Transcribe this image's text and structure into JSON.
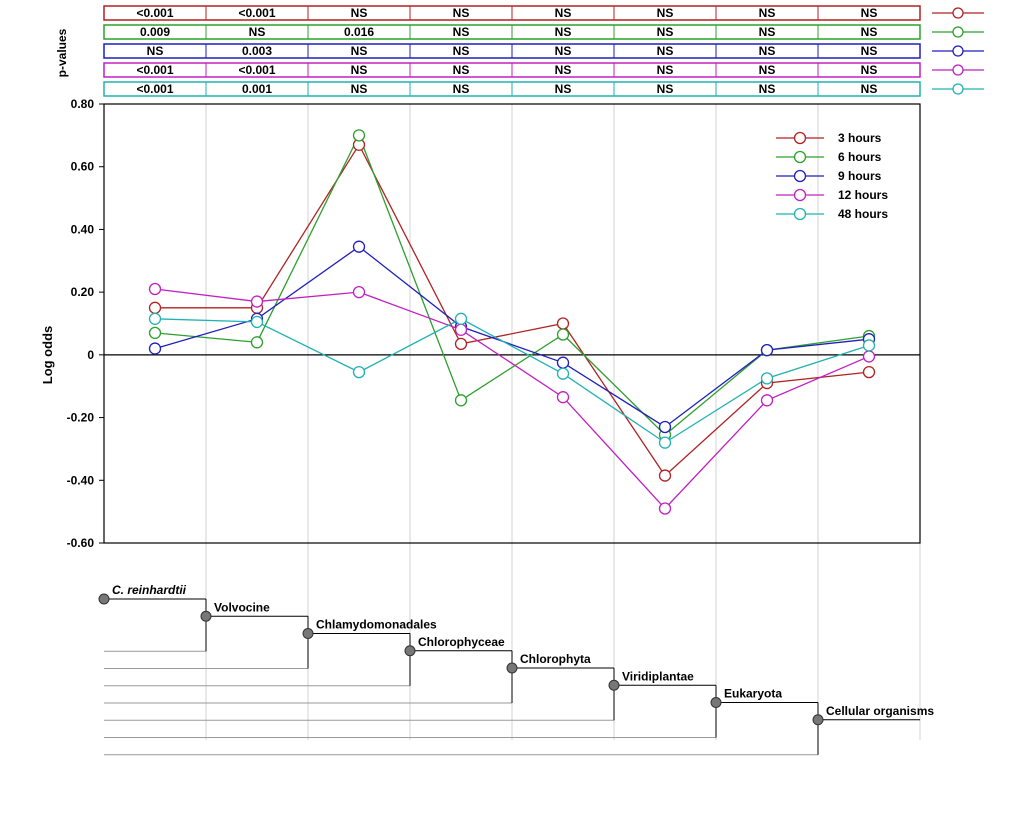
{
  "pvalue_label": "p-values",
  "colors": {
    "3h": "#b22222",
    "6h": "#2ca02c",
    "9h": "#1f1fbf",
    "12h": "#c020c0",
    "48h": "#20b2b2"
  },
  "chart_data": {
    "type": "line",
    "title": "",
    "xlabel": "",
    "ylabel": "Log odds",
    "ylim": [
      -0.6,
      0.8
    ],
    "yticks": [
      -0.6,
      -0.4,
      -0.2,
      0,
      0.2,
      0.4,
      0.6,
      0.8
    ],
    "ytick_labels": [
      "-0.60",
      "-0.40",
      "-0.20",
      "0",
      "0.20",
      "0.40",
      "0.60",
      "0.80"
    ],
    "grid": "vertical",
    "legend_position": "top-right",
    "categories": [
      "C. reinhardtii",
      "Volvocine",
      "Chlamydomonadales",
      "Chlorophyceae",
      "Chlorophyta",
      "Viridiplantae",
      "Eukaryota",
      "Cellular organisms"
    ],
    "series": [
      {
        "name": "3 hours",
        "color": "#b22222",
        "values": [
          0.15,
          0.15,
          0.67,
          0.035,
          0.1,
          -0.385,
          -0.09,
          -0.055
        ]
      },
      {
        "name": "6 hours",
        "color": "#2ca02c",
        "values": [
          0.07,
          0.04,
          0.7,
          -0.145,
          0.065,
          -0.255,
          0.015,
          0.06
        ]
      },
      {
        "name": "9 hours",
        "color": "#1f1fbf",
        "values": [
          0.02,
          0.115,
          0.345,
          0.09,
          -0.025,
          -0.23,
          0.015,
          0.05
        ]
      },
      {
        "name": "12 hours",
        "color": "#c020c0",
        "values": [
          0.21,
          0.17,
          0.2,
          0.08,
          -0.135,
          -0.49,
          -0.145,
          -0.005
        ]
      },
      {
        "name": "48 hours",
        "color": "#20b2b2",
        "values": [
          0.115,
          0.105,
          -0.055,
          0.115,
          -0.06,
          -0.28,
          -0.075,
          0.03
        ]
      }
    ],
    "pvalues": [
      [
        "<0.001",
        "<0.001",
        "NS",
        "NS",
        "NS",
        "NS",
        "NS",
        "NS"
      ],
      [
        "0.009",
        "NS",
        "0.016",
        "NS",
        "NS",
        "NS",
        "NS",
        "NS"
      ],
      [
        "NS",
        "0.003",
        "NS",
        "NS",
        "NS",
        "NS",
        "NS",
        "NS"
      ],
      [
        "<0.001",
        "<0.001",
        "NS",
        "NS",
        "NS",
        "NS",
        "NS",
        "NS"
      ],
      [
        "<0.001",
        "0.001",
        "NS",
        "NS",
        "NS",
        "NS",
        "NS",
        "NS"
      ]
    ]
  }
}
